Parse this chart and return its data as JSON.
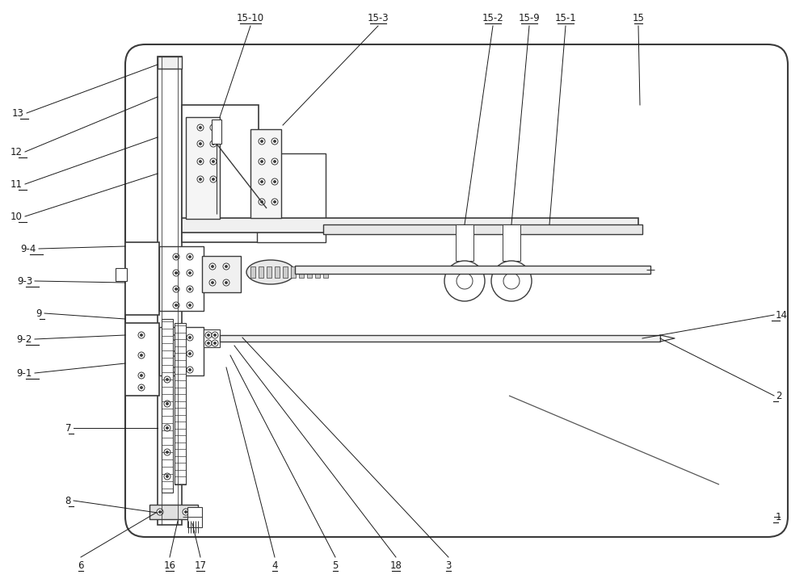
{
  "bg_color": "#ffffff",
  "line_color": "#3a3a3a",
  "label_color": "#1a1a1a",
  "fig_width": 10.0,
  "fig_height": 7.22
}
